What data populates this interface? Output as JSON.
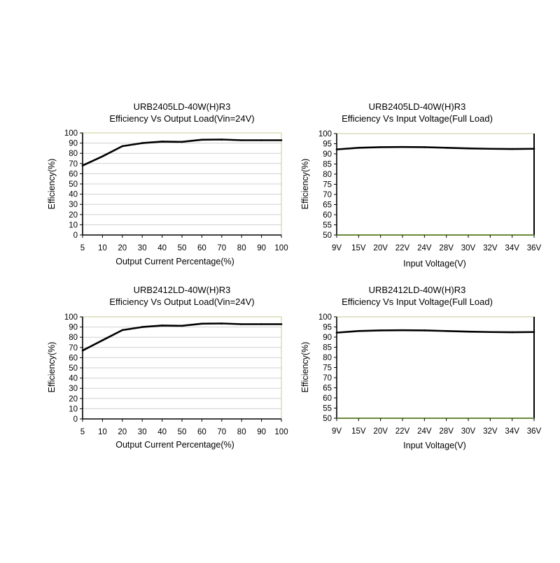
{
  "chart_data": [
    {
      "type": "line",
      "title": "URB2405LD-40W(H)R3",
      "subtitle": "Efficiency Vs Output Load(Vin=24V)",
      "xlabel": "Output Current Percentage(%)",
      "ylabel": "Efficiency(%)",
      "categories": [
        "5",
        "10",
        "20",
        "30",
        "40",
        "50",
        "60",
        "70",
        "80",
        "90",
        "100"
      ],
      "yticks": [
        "0",
        "10",
        "20",
        "30",
        "40",
        "50",
        "60",
        "70",
        "80",
        "90",
        "100"
      ],
      "ylim": [
        0,
        100
      ],
      "values": [
        68,
        77,
        87,
        90,
        91.5,
        91.2,
        93.3,
        93.5,
        92.8,
        92.8,
        92.8
      ],
      "grid": true,
      "colors": {
        "line": "#000000",
        "grid": "#d0d0d0",
        "frame_top_right": "#c8c890"
      }
    },
    {
      "type": "line",
      "title": "URB2405LD-40W(H)R3",
      "subtitle": "Efficiency Vs Input Voltage(Full Load)",
      "xlabel": "Input Voltage(V)",
      "ylabel": "Efficiency(%)",
      "categories": [
        "9V",
        "15V",
        "20V",
        "22V",
        "24V",
        "28V",
        "30V",
        "32V",
        "34V",
        "36V"
      ],
      "yticks": [
        "50",
        "55",
        "60",
        "65",
        "70",
        "75",
        "80",
        "85",
        "90",
        "95",
        "100"
      ],
      "ylim": [
        50,
        100
      ],
      "values": [
        92.2,
        93,
        93.3,
        93.4,
        93.3,
        93,
        92.7,
        92.5,
        92.4,
        92.5
      ],
      "grid": false,
      "colors": {
        "line": "#000000",
        "frame_top_right": "#c8c890",
        "bottom_edge": "#6a8a3a"
      }
    },
    {
      "type": "line",
      "title": "URB2412LD-40W(H)R3",
      "subtitle": "Efficiency Vs Output Load(Vin=24V)",
      "xlabel": "Output Current Percentage(%)",
      "ylabel": "Efficiency(%)",
      "categories": [
        "5",
        "10",
        "20",
        "30",
        "40",
        "50",
        "60",
        "70",
        "80",
        "90",
        "100"
      ],
      "yticks": [
        "0",
        "10",
        "20",
        "30",
        "40",
        "50",
        "60",
        "70",
        "80",
        "90",
        "100"
      ],
      "ylim": [
        0,
        100
      ],
      "values": [
        67,
        77,
        87,
        90,
        91.5,
        91.2,
        93.3,
        93.5,
        92.8,
        92.8,
        92.8
      ],
      "grid": true,
      "colors": {
        "line": "#000000",
        "grid": "#d0d0d0",
        "frame_top_right": "#c8c890"
      }
    },
    {
      "type": "line",
      "title": "URB2412LD-40W(H)R3",
      "subtitle": "Efficiency Vs Input Voltage(Full Load)",
      "xlabel": "Input Voltage(V)",
      "ylabel": "Efficiency(%)",
      "categories": [
        "9V",
        "15V",
        "20V",
        "22V",
        "24V",
        "28V",
        "30V",
        "32V",
        "34V",
        "36V"
      ],
      "yticks": [
        "50",
        "55",
        "60",
        "65",
        "70",
        "75",
        "80",
        "85",
        "90",
        "95",
        "100"
      ],
      "ylim": [
        50,
        100
      ],
      "values": [
        92.2,
        93,
        93.3,
        93.4,
        93.3,
        93,
        92.7,
        92.5,
        92.4,
        92.5
      ],
      "grid": false,
      "colors": {
        "line": "#000000",
        "frame_top_right": "#c8c890",
        "bottom_edge": "#6a8a3a"
      }
    }
  ]
}
